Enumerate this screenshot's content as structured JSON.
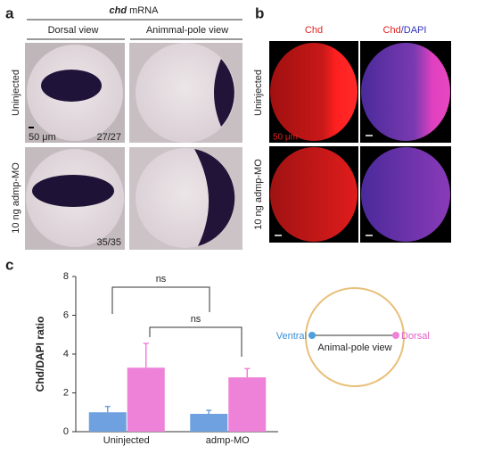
{
  "panel_a": {
    "label": "a",
    "header": [
      "chd",
      "mRNA"
    ],
    "columns": [
      "Dorsal view",
      "Animmal-pole view"
    ],
    "rows": [
      "Uninjected",
      "10 ng admp-MO"
    ],
    "scale_bar": "50 μm",
    "counts": [
      "27/27",
      "35/35"
    ]
  },
  "panel_b": {
    "label": "b",
    "columns": [
      [
        "Chd"
      ],
      [
        "Chd",
        "/DAPI"
      ]
    ],
    "rows": [
      "Uninjected",
      "10 ng admp-MO"
    ],
    "scale_bar": "50 μm"
  },
  "panel_c": {
    "label": "c"
  },
  "chart_data": {
    "type": "bar",
    "ylabel": "Chd/DAPI ratio",
    "categories": [
      "Uninjected",
      "admp-MO"
    ],
    "series": [
      {
        "color": "#6fa1e0",
        "values": [
          1.0,
          0.92
        ],
        "errors": [
          0.3,
          0.18
        ]
      },
      {
        "color": "#ee82d8",
        "values": [
          3.3,
          2.8
        ],
        "errors": [
          1.25,
          0.45
        ]
      }
    ],
    "ylim": [
      0,
      8
    ],
    "yticks": [
      0,
      2,
      4,
      6,
      8
    ],
    "annotations": [
      "ns",
      "ns"
    ]
  },
  "diagram": {
    "left": "Ventral",
    "right": "Dorsal",
    "center": "Animal-pole view"
  }
}
